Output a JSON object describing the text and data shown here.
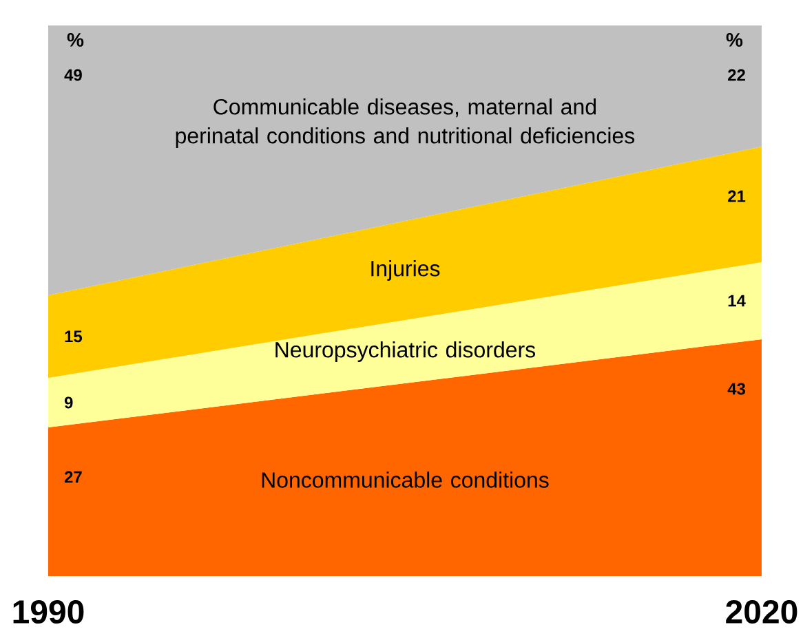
{
  "chart_data": {
    "type": "area",
    "stacked": true,
    "data_labels": true,
    "categories": [
      "1990",
      "2020"
    ],
    "series": [
      {
        "name": "Noncommunicable conditions",
        "color": "#ff6600",
        "values": [
          27,
          43
        ]
      },
      {
        "name": "Neuropsychiatric disorders",
        "color": "#ffff99",
        "values": [
          9,
          14
        ]
      },
      {
        "name": "Injuries",
        "color": "#ffcc00",
        "values": [
          15,
          21
        ]
      },
      {
        "name": "Communicable diseases, maternal and perinatal conditions and nutritional deficiencies",
        "color": "#c0c0c0",
        "values": [
          49,
          22
        ]
      }
    ],
    "annotations": [
      "%",
      "%"
    ]
  }
}
